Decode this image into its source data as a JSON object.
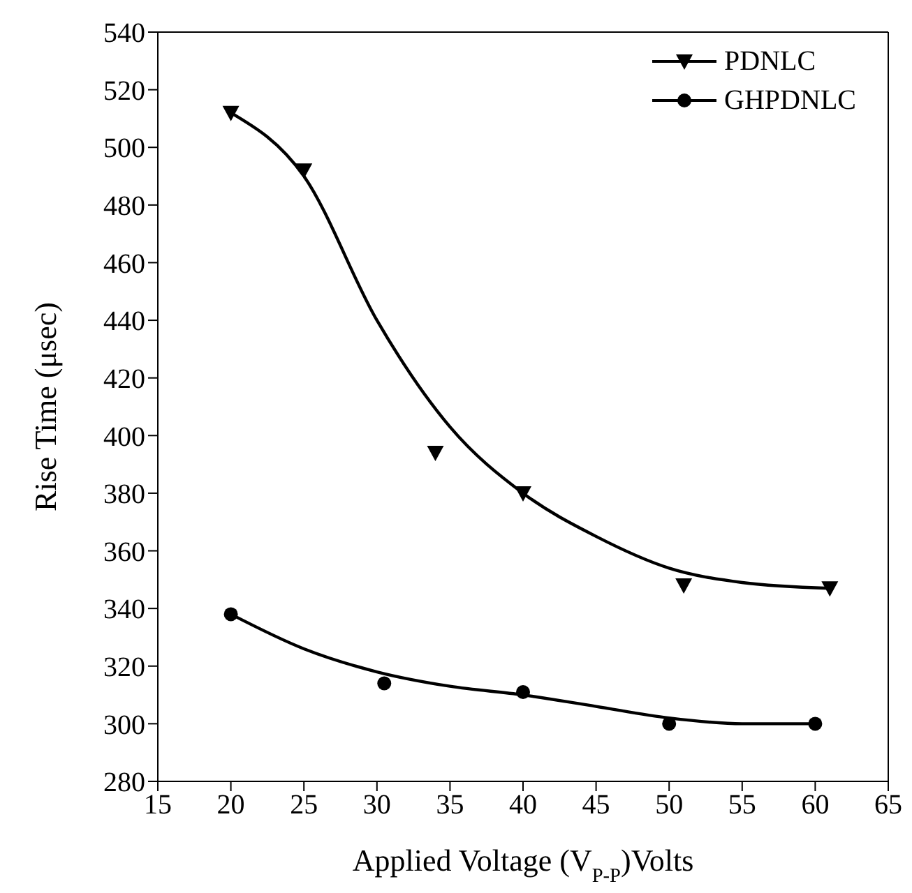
{
  "chart_data": {
    "type": "scatter",
    "xlabel": "Applied Voltage (V$_{P-P}$)Volts",
    "ylabel": "Rise Time (μsec)",
    "xlim": [
      15,
      65
    ],
    "xticks": [
      15,
      20,
      25,
      30,
      35,
      40,
      45,
      50,
      55,
      60,
      65
    ],
    "ylim": [
      280,
      540
    ],
    "yticks": [
      280,
      300,
      320,
      340,
      360,
      380,
      400,
      420,
      440,
      460,
      480,
      500,
      520,
      540
    ],
    "legend": "top right",
    "series": [
      {
        "name": "PDNLC",
        "marker": "triangle",
        "color": "#000000",
        "x": [
          20,
          25,
          34,
          40,
          51,
          61
        ],
        "values": [
          512,
          492,
          394,
          380,
          348,
          347
        ]
      },
      {
        "name": "GHPDNLC",
        "marker": "circle",
        "color": "#000000",
        "x": [
          20,
          30.5,
          40,
          50,
          60
        ],
        "values": [
          338,
          314,
          311,
          300,
          300
        ]
      },
      {
        "type": "line",
        "marker": "none",
        "line_style": "solid",
        "color": "#000000",
        "x": [
          20,
          25,
          30,
          35,
          40,
          45,
          50,
          55,
          61
        ],
        "values": [
          512,
          490,
          440,
          403,
          380,
          365,
          354,
          349,
          347
        ]
      },
      {
        "type": "line",
        "marker": "none",
        "line_style": "solid",
        "color": "#000000",
        "x": [
          20,
          25,
          30,
          35,
          40,
          45,
          50,
          55,
          60
        ],
        "values": [
          338,
          326,
          318,
          313,
          310,
          306,
          302,
          300,
          300
        ]
      }
    ]
  }
}
